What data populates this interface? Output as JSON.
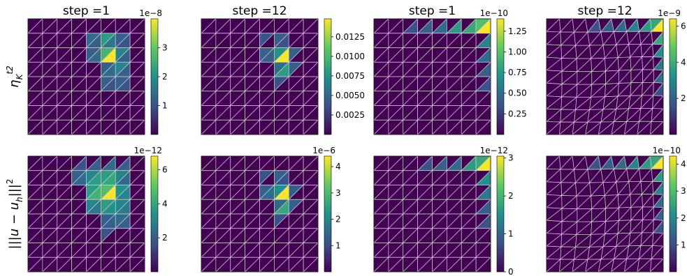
{
  "figure": {
    "row_labels": [
      "η_K^{t2}",
      "|||u − u_h|||²"
    ],
    "colormap": [
      "#440154",
      "#3b528b",
      "#21918c",
      "#5ec962",
      "#fde725"
    ]
  },
  "chart_data": [
    {
      "type": "heatmap",
      "mesh": "uniform",
      "title": "step =1",
      "ylabel": "η_K^{t2}",
      "colorbar": {
        "offset_label": "1e−8",
        "ticks": [
          "1",
          "2",
          "3"
        ],
        "tick_values": [
          1,
          2,
          3
        ],
        "range": [
          0,
          4
        ]
      },
      "grid": {
        "rows": 8,
        "cols": 8
      },
      "cells": [
        [
          0,
          0,
          0,
          0,
          0,
          0,
          0,
          0,
          0,
          0,
          0,
          0,
          0,
          0,
          0,
          0
        ],
        [
          0,
          0,
          0,
          0,
          0,
          0,
          0,
          0,
          0,
          0,
          0,
          0,
          0,
          0,
          0,
          0
        ],
        [
          0,
          0,
          0,
          0,
          0,
          0,
          0,
          0,
          0,
          0,
          0,
          0,
          0,
          0,
          0,
          0
        ],
        [
          0,
          0,
          0,
          0,
          0,
          0,
          0,
          0,
          0,
          0,
          0,
          0,
          0,
          0,
          0,
          0
        ],
        [
          0,
          0,
          0,
          0,
          0,
          0,
          0,
          0,
          0,
          0,
          0,
          0,
          0,
          0,
          0,
          0
        ],
        [
          0,
          0,
          0,
          0,
          0,
          0,
          0,
          0,
          0,
          0,
          0,
          0,
          0,
          0,
          0,
          0
        ],
        [
          0,
          0,
          0,
          0,
          0,
          0,
          0,
          0,
          0,
          0,
          0,
          0,
          0,
          0,
          0,
          0
        ],
        [
          0,
          0,
          0,
          0,
          0,
          0,
          0,
          0,
          0,
          0,
          0,
          0,
          0,
          0,
          0,
          0
        ]
      ],
      "hot": [
        [
          1,
          4,
          0,
          0.35
        ],
        [
          1,
          4,
          1,
          0.3
        ],
        [
          1,
          5,
          0,
          0.55
        ],
        [
          1,
          5,
          1,
          0.4
        ],
        [
          1,
          6,
          0,
          0.3
        ],
        [
          1,
          6,
          1,
          0.25
        ],
        [
          2,
          4,
          0,
          0.3
        ],
        [
          2,
          4,
          1,
          0.35
        ],
        [
          2,
          5,
          0,
          0.65
        ],
        [
          2,
          5,
          1,
          1.0
        ],
        [
          2,
          6,
          0,
          0.45
        ],
        [
          2,
          6,
          1,
          0.3
        ],
        [
          3,
          5,
          0,
          0.3
        ],
        [
          3,
          5,
          1,
          0.35
        ],
        [
          3,
          6,
          0,
          0.45
        ],
        [
          3,
          6,
          1,
          0.3
        ],
        [
          4,
          5,
          0,
          0.3
        ],
        [
          4,
          5,
          1,
          0.25
        ],
        [
          4,
          6,
          0,
          0.3
        ],
        [
          4,
          6,
          1,
          0.25
        ]
      ]
    },
    {
      "type": "heatmap",
      "mesh": "uniform",
      "title": "step =12",
      "colorbar": {
        "offset_label": "",
        "ticks": [
          "0.0025",
          "0.0050",
          "0.0075",
          "0.0100",
          "0.0125"
        ],
        "tick_values": [
          0.0025,
          0.005,
          0.0075,
          0.01,
          0.0125
        ],
        "range": [
          0,
          0.0148
        ]
      },
      "grid": {
        "rows": 8,
        "cols": 8
      },
      "hot": [
        [
          1,
          4,
          0,
          0.25
        ],
        [
          1,
          5,
          0,
          0.3
        ],
        [
          1,
          5,
          1,
          0.25
        ],
        [
          2,
          4,
          0,
          0.3
        ],
        [
          2,
          4,
          1,
          0.3
        ],
        [
          2,
          5,
          0,
          0.5
        ],
        [
          2,
          5,
          1,
          1.0
        ],
        [
          2,
          6,
          0,
          0.3
        ],
        [
          3,
          5,
          0,
          0.35
        ],
        [
          3,
          5,
          1,
          0.55
        ],
        [
          3,
          6,
          0,
          0.3
        ],
        [
          4,
          5,
          0,
          0.25
        ]
      ]
    },
    {
      "type": "heatmap",
      "mesh": "uniform",
      "title": "step =1",
      "colorbar": {
        "offset_label": "1e−10",
        "ticks": [
          "0.25",
          "0.50",
          "0.75",
          "1.00",
          "1.25"
        ],
        "tick_values": [
          0.25,
          0.5,
          0.75,
          1.0,
          1.25
        ],
        "range": [
          0,
          1.4
        ]
      },
      "grid": {
        "rows": 8,
        "cols": 8
      },
      "hot": [
        [
          0,
          2,
          1,
          0.25
        ],
        [
          0,
          3,
          1,
          0.3
        ],
        [
          0,
          4,
          1,
          0.35
        ],
        [
          0,
          5,
          1,
          0.55
        ],
        [
          0,
          6,
          1,
          0.6
        ],
        [
          0,
          7,
          0,
          0.7
        ],
        [
          0,
          7,
          1,
          1.0
        ],
        [
          1,
          7,
          1,
          0.45
        ],
        [
          2,
          7,
          1,
          0.35
        ],
        [
          3,
          7,
          1,
          0.3
        ],
        [
          4,
          7,
          1,
          0.25
        ]
      ]
    },
    {
      "type": "heatmap",
      "mesh": "adapted",
      "title": "step =12",
      "colorbar": {
        "offset_label": "1e−9",
        "ticks": [
          "2",
          "4",
          "6"
        ],
        "tick_values": [
          2,
          4,
          6
        ],
        "range": [
          0,
          6.4
        ]
      },
      "grid": {
        "rows": 9,
        "cols": 9
      },
      "hot": [
        [
          0,
          3,
          1,
          0.25
        ],
        [
          0,
          4,
          1,
          0.3
        ],
        [
          0,
          5,
          1,
          0.35
        ],
        [
          0,
          6,
          1,
          0.45
        ],
        [
          0,
          7,
          1,
          0.55
        ],
        [
          0,
          8,
          0,
          0.6
        ],
        [
          0,
          8,
          1,
          1.0
        ],
        [
          1,
          8,
          1,
          0.6
        ],
        [
          2,
          8,
          1,
          0.5
        ],
        [
          3,
          8,
          1,
          0.4
        ],
        [
          4,
          8,
          1,
          0.35
        ],
        [
          5,
          8,
          1,
          0.25
        ]
      ]
    },
    {
      "type": "heatmap",
      "mesh": "uniform",
      "title": "",
      "ylabel": "|||u − u_h|||²",
      "colorbar": {
        "offset_label": "1e−12",
        "ticks": [
          "2",
          "4",
          "6"
        ],
        "tick_values": [
          2,
          4,
          6
        ],
        "range": [
          0,
          6.8
        ]
      },
      "grid": {
        "rows": 8,
        "cols": 8
      },
      "hot": [
        [
          0,
          3,
          1,
          0.25
        ],
        [
          0,
          4,
          1,
          0.3
        ],
        [
          0,
          5,
          1,
          0.35
        ],
        [
          0,
          6,
          1,
          0.3
        ],
        [
          1,
          3,
          0,
          0.3
        ],
        [
          1,
          3,
          1,
          0.35
        ],
        [
          1,
          4,
          0,
          0.45
        ],
        [
          1,
          4,
          1,
          0.55
        ],
        [
          1,
          5,
          0,
          0.55
        ],
        [
          1,
          5,
          1,
          0.6
        ],
        [
          1,
          6,
          0,
          0.45
        ],
        [
          1,
          6,
          1,
          0.35
        ],
        [
          2,
          4,
          0,
          0.55
        ],
        [
          2,
          4,
          1,
          0.65
        ],
        [
          2,
          5,
          0,
          0.7
        ],
        [
          2,
          5,
          1,
          1.0
        ],
        [
          2,
          6,
          0,
          0.5
        ],
        [
          2,
          6,
          1,
          0.45
        ],
        [
          3,
          4,
          0,
          0.45
        ],
        [
          3,
          4,
          1,
          0.4
        ],
        [
          3,
          5,
          0,
          0.55
        ],
        [
          3,
          5,
          1,
          0.5
        ],
        [
          3,
          6,
          0,
          0.45
        ],
        [
          3,
          6,
          1,
          0.4
        ],
        [
          4,
          5,
          0,
          0.3
        ],
        [
          4,
          5,
          1,
          0.3
        ],
        [
          4,
          6,
          0,
          0.35
        ],
        [
          4,
          6,
          1,
          0.3
        ],
        [
          5,
          5,
          0,
          0.25
        ]
      ]
    },
    {
      "type": "heatmap",
      "mesh": "uniform",
      "title": "",
      "colorbar": {
        "offset_label": "1e−6",
        "ticks": [
          "1",
          "2",
          "3",
          "4"
        ],
        "tick_values": [
          1,
          2,
          3,
          4
        ],
        "range": [
          0,
          4.4
        ]
      },
      "grid": {
        "rows": 8,
        "cols": 8
      },
      "hot": [
        [
          1,
          4,
          0,
          0.25
        ],
        [
          1,
          5,
          0,
          0.3
        ],
        [
          1,
          5,
          1,
          0.25
        ],
        [
          2,
          4,
          0,
          0.3
        ],
        [
          2,
          4,
          1,
          0.35
        ],
        [
          2,
          5,
          0,
          0.5
        ],
        [
          2,
          5,
          1,
          1.0
        ],
        [
          2,
          6,
          0,
          0.3
        ],
        [
          3,
          5,
          0,
          0.35
        ],
        [
          3,
          5,
          1,
          0.6
        ],
        [
          3,
          6,
          0,
          0.3
        ],
        [
          4,
          5,
          0,
          0.25
        ]
      ]
    },
    {
      "type": "heatmap",
      "mesh": "uniform",
      "title": "",
      "colorbar": {
        "offset_label": "1e−12",
        "ticks": [
          "0",
          "1",
          "2",
          "3"
        ],
        "tick_values": [
          0,
          1,
          2,
          3
        ],
        "range": [
          0,
          3.05
        ]
      },
      "grid": {
        "rows": 8,
        "cols": 8
      },
      "hot": [
        [
          0,
          3,
          1,
          0.25
        ],
        [
          0,
          4,
          1,
          0.3
        ],
        [
          0,
          5,
          1,
          0.35
        ],
        [
          0,
          6,
          1,
          0.55
        ],
        [
          0,
          7,
          0,
          0.6
        ],
        [
          0,
          7,
          1,
          1.0
        ],
        [
          1,
          7,
          1,
          0.5
        ],
        [
          2,
          7,
          1,
          0.4
        ],
        [
          3,
          7,
          1,
          0.3
        ],
        [
          4,
          7,
          1,
          0.25
        ]
      ]
    },
    {
      "type": "heatmap",
      "mesh": "adapted",
      "title": "",
      "colorbar": {
        "offset_label": "1e−10",
        "ticks": [
          "1",
          "2",
          "3",
          "4"
        ],
        "tick_values": [
          1,
          2,
          3,
          4
        ],
        "range": [
          0,
          4.3
        ]
      },
      "grid": {
        "rows": 9,
        "cols": 9
      },
      "hot": [
        [
          0,
          3,
          1,
          0.25
        ],
        [
          0,
          4,
          1,
          0.3
        ],
        [
          0,
          5,
          1,
          0.35
        ],
        [
          0,
          6,
          1,
          0.45
        ],
        [
          0,
          7,
          1,
          0.55
        ],
        [
          0,
          8,
          0,
          0.6
        ],
        [
          0,
          8,
          1,
          1.0
        ],
        [
          1,
          8,
          1,
          0.55
        ],
        [
          2,
          8,
          1,
          0.45
        ],
        [
          3,
          8,
          1,
          0.35
        ],
        [
          4,
          8,
          1,
          0.3
        ],
        [
          5,
          8,
          1,
          0.25
        ]
      ]
    }
  ]
}
